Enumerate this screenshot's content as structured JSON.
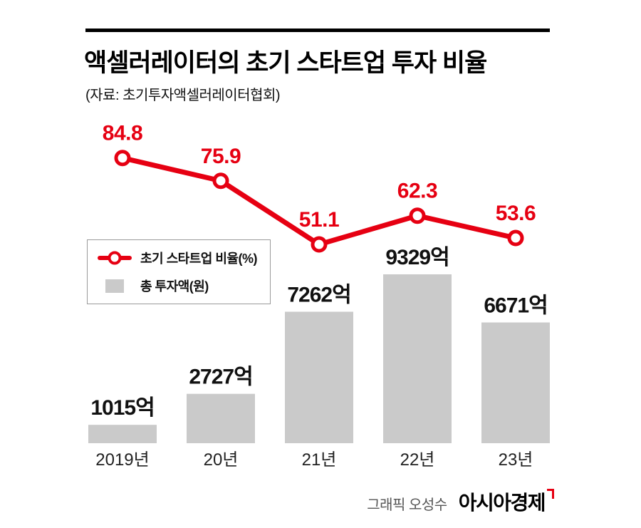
{
  "page": {
    "title": "액셀러레이터의 초기 스타트업 투자 비율",
    "source": "(자료: 초기투자액셀러레이터협회)",
    "credit": "그래픽 오성수",
    "brand": "아시아경제"
  },
  "legend": {
    "line_label": "초기 스타트업 비율(%)",
    "bar_label": "총 투자액(원)"
  },
  "colors": {
    "accent_red": "#e60012",
    "bar_gray": "#cacaca",
    "text_black": "#111111"
  },
  "chart_data": {
    "type": "line+bar",
    "title": "액셀러레이터의 초기 스타트업 투자 비율",
    "categories": [
      "2019년",
      "20년",
      "21년",
      "22년",
      "23년"
    ],
    "series": [
      {
        "name": "초기 스타트업 비율(%)",
        "type": "line",
        "unit": "%",
        "color": "#e60012",
        "values": [
          84.8,
          75.9,
          51.1,
          62.3,
          53.6
        ]
      },
      {
        "name": "총 투자액(원)",
        "type": "bar",
        "unit": "억원",
        "color": "#cacaca",
        "values": [
          1015,
          2727,
          7262,
          9329,
          6671
        ],
        "labels": [
          "1015억",
          "2727억",
          "7262억",
          "9329억",
          "6671억"
        ]
      }
    ],
    "grid": false,
    "legend_position": "middle-left",
    "value_labels_shown": true
  }
}
